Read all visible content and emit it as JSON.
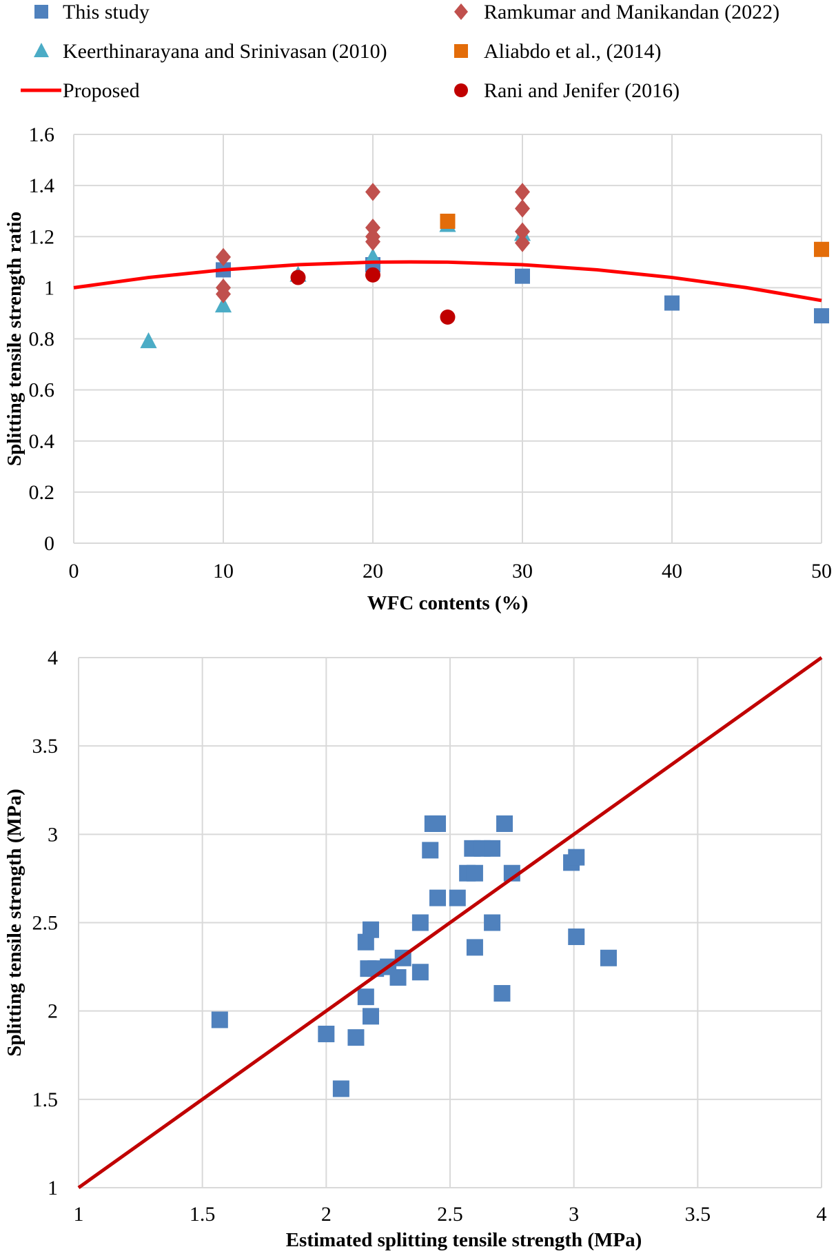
{
  "chart_data": [
    {
      "type": "scatter",
      "xlabel": "WFC contents (%)",
      "ylabel": "Splitting tensile strength ratio",
      "xlim": [
        0,
        50
      ],
      "ylim": [
        0,
        1.6
      ],
      "xticks": [
        0,
        10,
        20,
        30,
        40,
        50
      ],
      "yticks": [
        0,
        0.2,
        0.4,
        0.6,
        0.8,
        1,
        1.2,
        1.4,
        1.6
      ],
      "ytick_labels": [
        "0",
        "0.2",
        "0.4",
        "0.6",
        "0.8",
        "1",
        "1.2",
        "1.4",
        "1.6"
      ],
      "grid": true,
      "legend_placement": "top",
      "series": [
        {
          "name": "This study",
          "marker": "square",
          "color": "#4F81BD",
          "points": [
            [
              10,
              1.07
            ],
            [
              20,
              1.09
            ],
            [
              30,
              1.045
            ],
            [
              40,
              0.94
            ],
            [
              50,
              0.89
            ]
          ]
        },
        {
          "name": "Keerthinarayana and Srinivasan (2010)",
          "marker": "triangle",
          "color": "#4BACC6",
          "points": [
            [
              5,
              0.79
            ],
            [
              10,
              0.93
            ],
            [
              15,
              1.05
            ],
            [
              20,
              1.12
            ],
            [
              25,
              1.245
            ],
            [
              30,
              1.21
            ]
          ]
        },
        {
          "name": "Proposed",
          "marker": "line",
          "color": "#FF0000",
          "points": [
            [
              0,
              1.0
            ],
            [
              5,
              1.04
            ],
            [
              10,
              1.07
            ],
            [
              15,
              1.09
            ],
            [
              20,
              1.1
            ],
            [
              22.5,
              1.101
            ],
            [
              25,
              1.1
            ],
            [
              30,
              1.09
            ],
            [
              35,
              1.07
            ],
            [
              40,
              1.04
            ],
            [
              45,
              1.0
            ],
            [
              50,
              0.95
            ]
          ]
        },
        {
          "name": "Ramkumar and Manikandan (2022)",
          "marker": "diamond",
          "color": "#C0504D",
          "points": [
            [
              10,
              1.12
            ],
            [
              10,
              1.0
            ],
            [
              10,
              0.975
            ],
            [
              20,
              1.375
            ],
            [
              20,
              1.235
            ],
            [
              20,
              1.2
            ],
            [
              20,
              1.18
            ],
            [
              30,
              1.375
            ],
            [
              30,
              1.31
            ],
            [
              30,
              1.22
            ],
            [
              30,
              1.175
            ]
          ]
        },
        {
          "name": "Aliabdo et al., (2014)",
          "marker": "square",
          "color": "#E36C09",
          "points": [
            [
              25,
              1.26
            ],
            [
              50,
              1.15
            ]
          ]
        },
        {
          "name": "Rani and Jenifer (2016)",
          "marker": "circle",
          "color": "#C00000",
          "points": [
            [
              15,
              1.04
            ],
            [
              20,
              1.05
            ],
            [
              25,
              0.885
            ]
          ]
        }
      ]
    },
    {
      "type": "scatter",
      "xlabel": "Estimated splitting tensile strength (MPa)",
      "ylabel": "Splitting tensile strength (MPa)",
      "xlim": [
        1,
        4
      ],
      "ylim": [
        1,
        4
      ],
      "xticks": [
        1,
        1.5,
        2,
        2.5,
        3,
        3.5,
        4
      ],
      "yticks": [
        1,
        1.5,
        2,
        2.5,
        3,
        3.5,
        4
      ],
      "grid": true,
      "series": [
        {
          "marker": "square",
          "color": "#4F81BD",
          "points": [
            [
              1.57,
              1.95
            ],
            [
              2.0,
              1.87
            ],
            [
              2.06,
              1.56
            ],
            [
              2.12,
              1.85
            ],
            [
              2.18,
              1.97
            ],
            [
              2.16,
              2.08
            ],
            [
              2.17,
              2.24
            ],
            [
              2.2,
              2.24
            ],
            [
              2.16,
              2.39
            ],
            [
              2.18,
              2.46
            ],
            [
              2.25,
              2.25
            ],
            [
              2.29,
              2.19
            ],
            [
              2.31,
              2.3
            ],
            [
              2.38,
              2.22
            ],
            [
              2.38,
              2.5
            ],
            [
              2.42,
              2.91
            ],
            [
              2.43,
              3.06
            ],
            [
              2.45,
              3.06
            ],
            [
              2.45,
              2.64
            ],
            [
              2.53,
              2.64
            ],
            [
              2.57,
              2.78
            ],
            [
              2.6,
              2.78
            ],
            [
              2.6,
              2.36
            ],
            [
              2.59,
              2.92
            ],
            [
              2.63,
              2.92
            ],
            [
              2.67,
              2.92
            ],
            [
              2.72,
              3.06
            ],
            [
              2.67,
              2.5
            ],
            [
              2.71,
              2.1
            ],
            [
              2.75,
              2.78
            ],
            [
              2.99,
              2.84
            ],
            [
              3.01,
              2.87
            ],
            [
              3.01,
              2.42
            ],
            [
              3.14,
              2.3
            ]
          ]
        },
        {
          "marker": "line",
          "color": "#C00000",
          "points": [
            [
              1,
              1
            ],
            [
              4,
              4
            ]
          ]
        }
      ]
    }
  ]
}
